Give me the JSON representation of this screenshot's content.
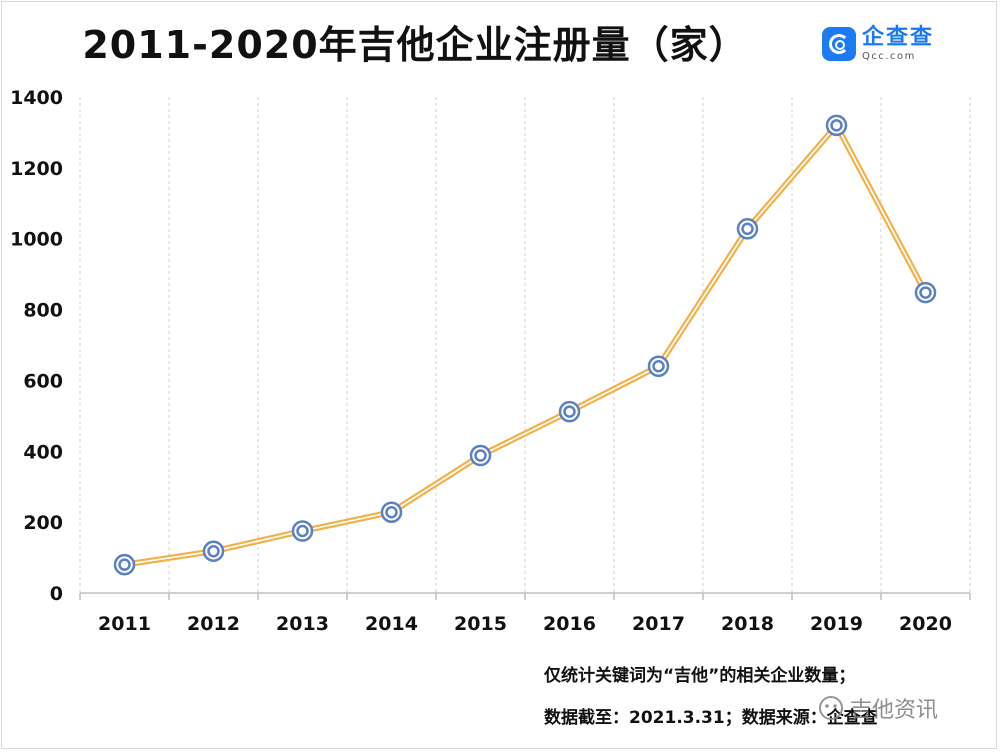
{
  "title": "2011-2020年吉他企业注册量（家）",
  "logo": {
    "cn": "企查查",
    "en": "Qcc.com"
  },
  "notes": {
    "line1": "仅统计关键词为“吉他”的相关企业数量；",
    "line2": "数据截至：2021.3.31；数据来源：企查查"
  },
  "watermark": {
    "text": "吉他资讯"
  },
  "colors": {
    "line": "#f2b14a",
    "marker_stroke": "#5b80c4",
    "grid": "#d0d0d0"
  },
  "chart_data": {
    "type": "line",
    "categories": [
      "2011",
      "2012",
      "2013",
      "2014",
      "2015",
      "2016",
      "2017",
      "2018",
      "2019",
      "2020"
    ],
    "values": [
      80,
      118,
      175,
      228,
      388,
      512,
      640,
      1028,
      1320,
      848
    ],
    "ylim": [
      0,
      1400
    ],
    "yticks": [
      0,
      200,
      400,
      600,
      800,
      1000,
      1200,
      1400
    ],
    "grid": "vertical dashed",
    "title": "2011-2020年吉他企业注册量（家）",
    "xlabel": "",
    "ylabel": ""
  }
}
